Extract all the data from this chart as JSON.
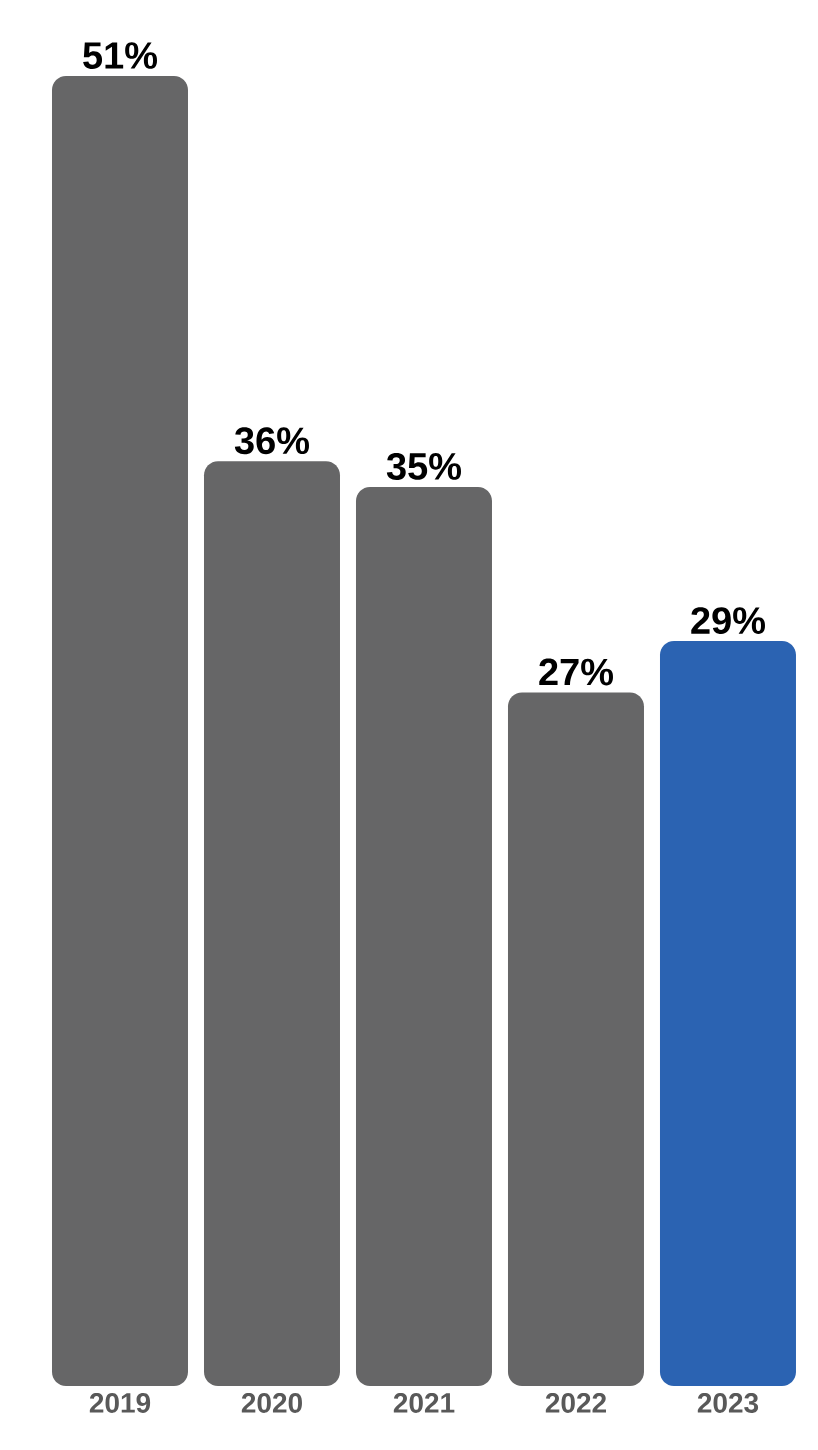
{
  "chart_data": {
    "type": "bar",
    "categories": [
      "2019",
      "2020",
      "2021",
      "2022",
      "2023"
    ],
    "values": [
      51,
      36,
      35,
      27,
      29
    ],
    "value_labels": [
      "51%",
      "36%",
      "35%",
      "27%",
      "29%"
    ],
    "colors": [
      "#666667",
      "#666667",
      "#666667",
      "#666667",
      "#2b63b2"
    ]
  }
}
